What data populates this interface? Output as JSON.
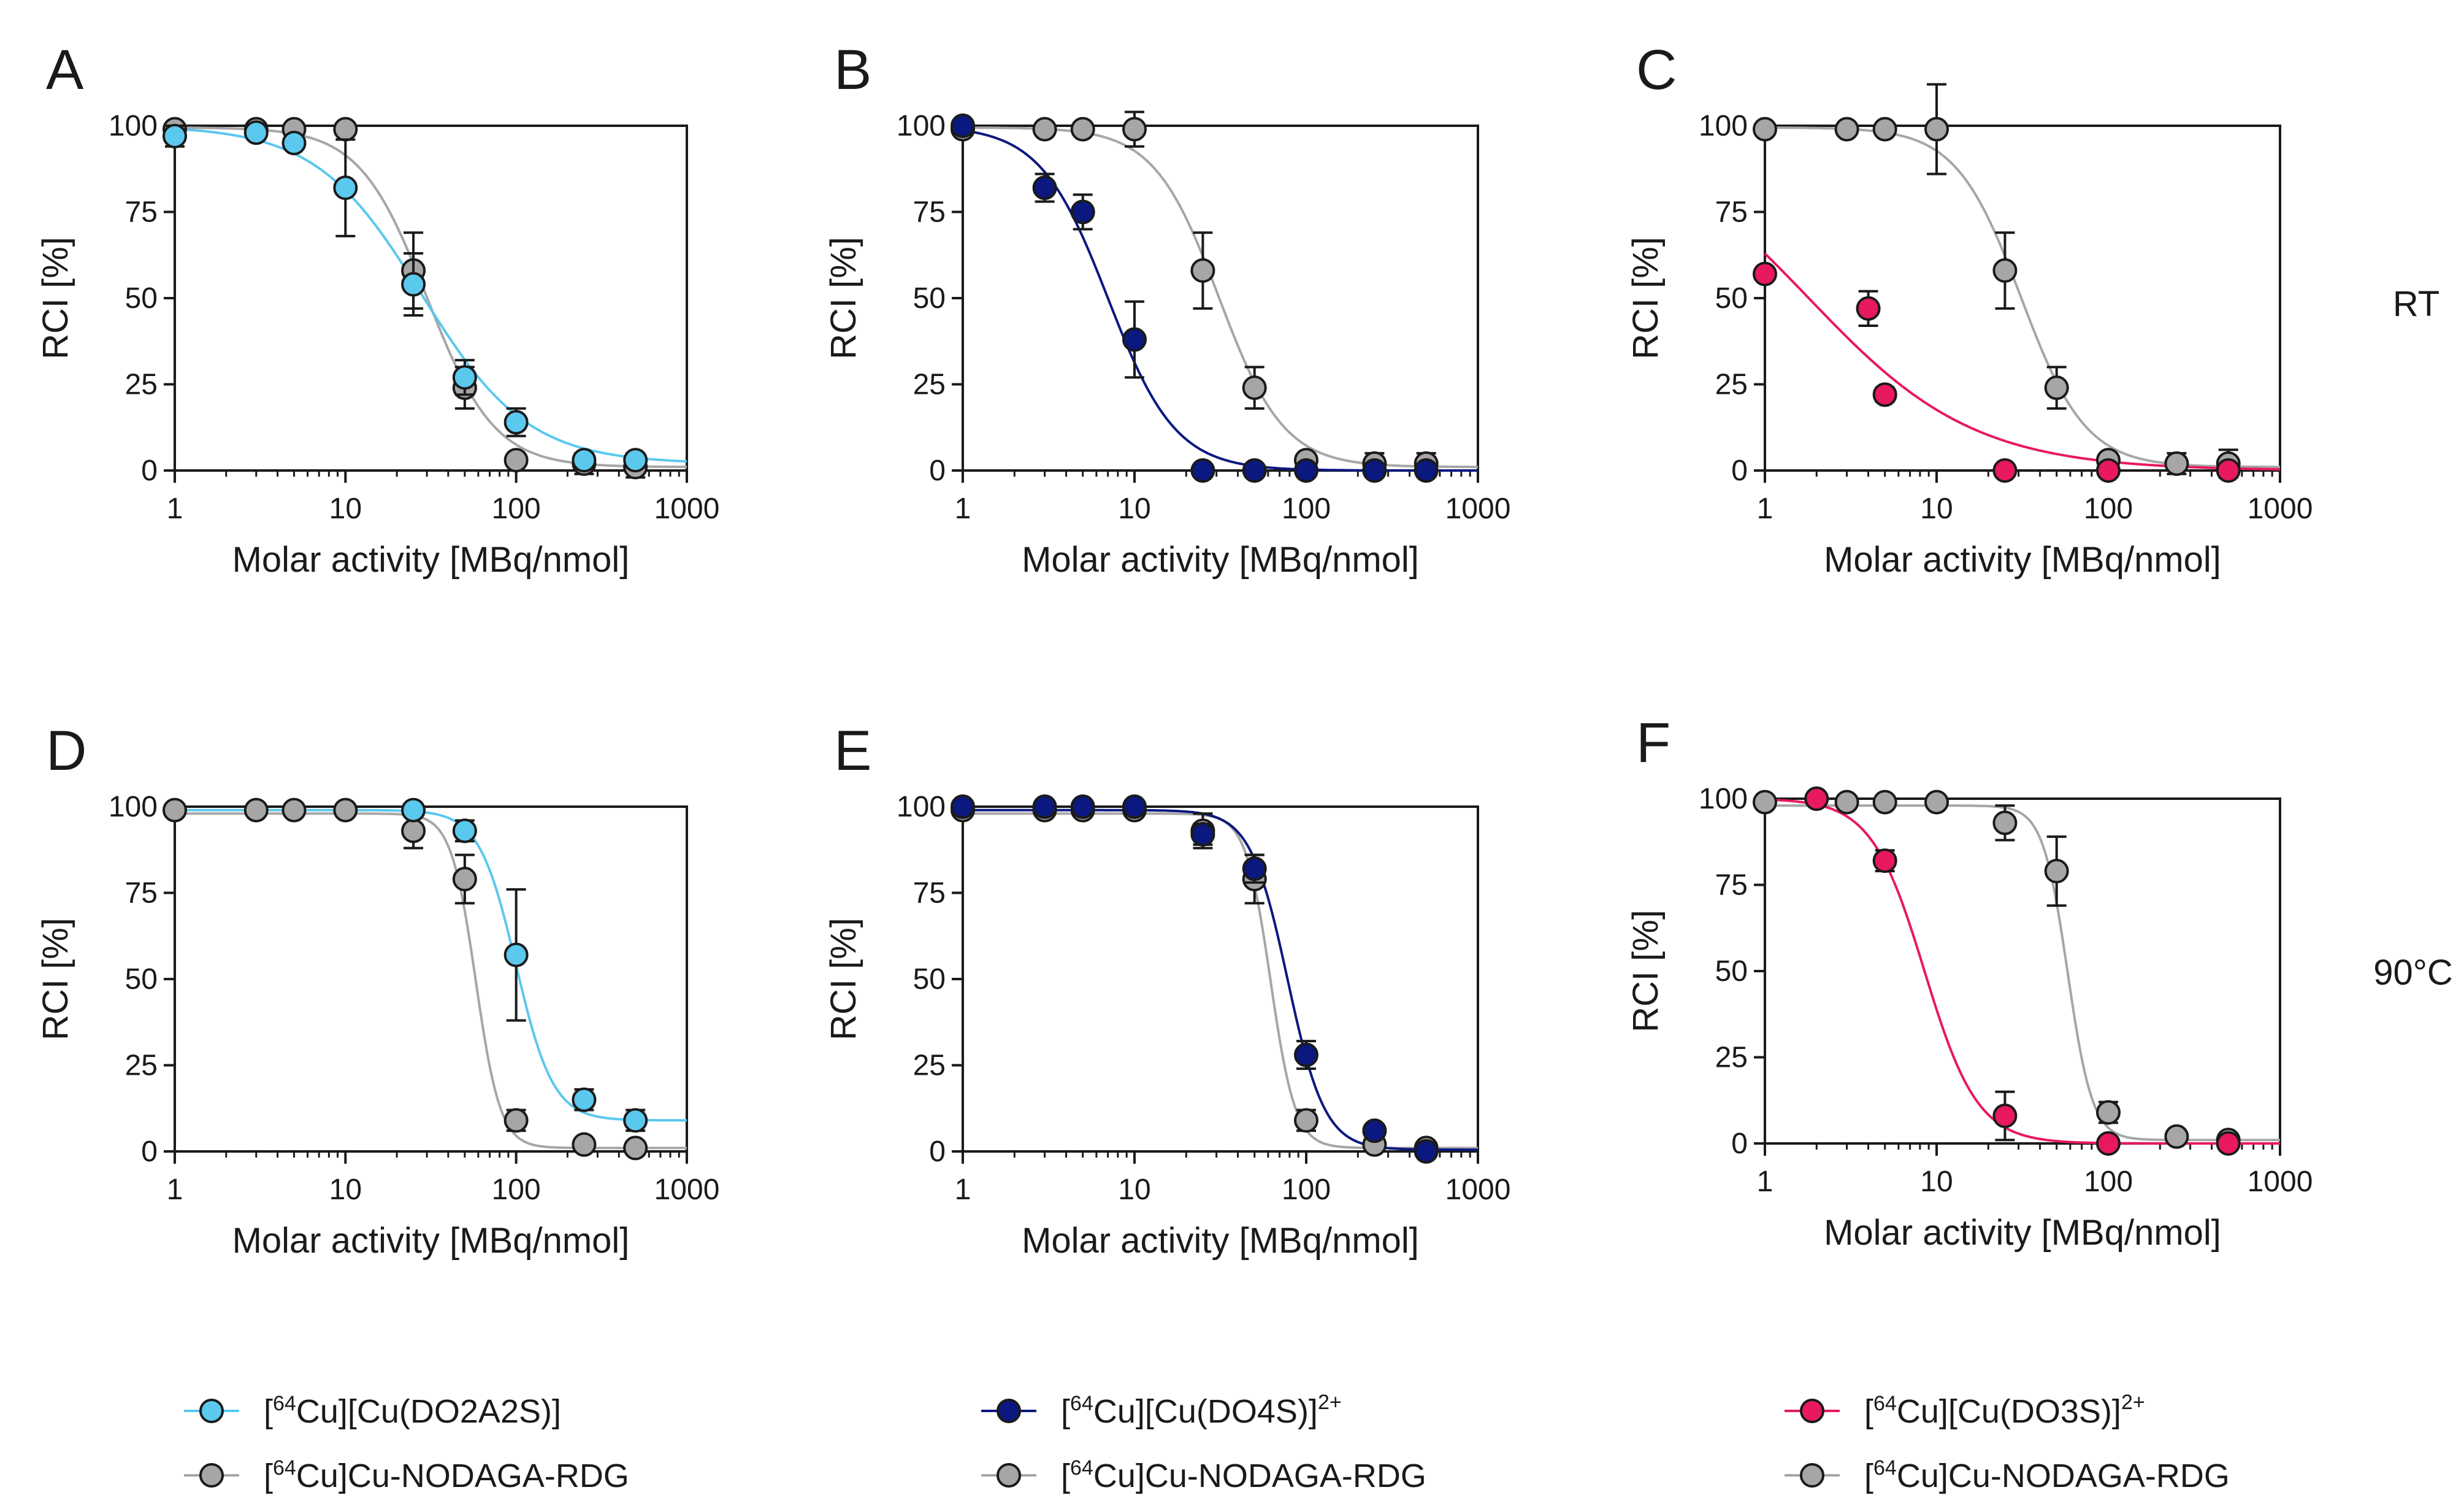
{
  "figure": {
    "row_labels": [
      "RT",
      "90°C"
    ],
    "colors": {
      "DO2A2S": "#5BC8EE",
      "DO4S": "#0A1880",
      "DO3S": "#E8195C",
      "NODAGA": "#A6A6A6",
      "axis": "#1a1a1a",
      "errorbar": "#1a1a1a"
    },
    "legend": [
      {
        "group": "DO2A2S",
        "entries": [
          {
            "prefix": "[",
            "sup": "64",
            "main": "Cu][Cu(DO2A2S)]",
            "sup2": "",
            "color_key": "DO2A2S"
          },
          {
            "prefix": "[",
            "sup": "64",
            "main": "Cu]Cu-NODAGA-RDG",
            "sup2": "",
            "color_key": "NODAGA"
          }
        ]
      },
      {
        "group": "DO4S",
        "entries": [
          {
            "prefix": "[",
            "sup": "64",
            "main": "Cu][Cu(DO4S)]",
            "sup2": "2+",
            "color_key": "DO4S"
          },
          {
            "prefix": "[",
            "sup": "64",
            "main": "Cu]Cu-NODAGA-RDG",
            "sup2": "",
            "color_key": "NODAGA"
          }
        ]
      },
      {
        "group": "DO3S",
        "entries": [
          {
            "prefix": "[",
            "sup": "64",
            "main": "Cu][Cu(DO3S)]",
            "sup2": "2+",
            "color_key": "DO3S"
          },
          {
            "prefix": "[",
            "sup": "64",
            "main": "Cu]Cu-NODAGA-RDG",
            "sup2": "",
            "color_key": "NODAGA"
          }
        ]
      }
    ]
  },
  "chart_data": [
    {
      "panel": "A",
      "condition": "RT",
      "type": "scatter",
      "xlabel": "Molar activity [MBq/nmol]",
      "ylabel": "RCI [%]",
      "xscale": "log",
      "xlim": [
        1,
        1000
      ],
      "ylim": [
        0,
        100
      ],
      "xticks": [
        1,
        10,
        100,
        1000
      ],
      "xtick_labels": [
        "1",
        "10",
        "100",
        "1000"
      ],
      "yticks": [
        0,
        25,
        50,
        75,
        100
      ],
      "ytick_labels": [
        "0",
        "25",
        "50",
        "75",
        "100"
      ],
      "series": [
        {
          "name": "[64Cu]Cu-NODAGA-RDG",
          "color_key": "NODAGA",
          "draw_order": 1,
          "fit": {
            "top": 99.5,
            "bottom": 1,
            "ic50": 30,
            "hill": 2.2
          },
          "points": [
            [
              1,
              99,
              1
            ],
            [
              3,
              99,
              1
            ],
            [
              5,
              99,
              1
            ],
            [
              10,
              99,
              1
            ],
            [
              25,
              58,
              11
            ],
            [
              50,
              24,
              6
            ],
            [
              100,
              3,
              0
            ],
            [
              250,
              2,
              3
            ],
            [
              500,
              1,
              3
            ]
          ]
        },
        {
          "name": "[64Cu][Cu(DO2A2S)]",
          "color_key": "DO2A2S",
          "draw_order": 2,
          "fit": {
            "top": 100,
            "bottom": 2,
            "ic50": 28,
            "hill": 1.4
          },
          "points": [
            [
              1,
              97,
              3
            ],
            [
              3,
              98,
              1
            ],
            [
              5,
              95,
              1
            ],
            [
              10,
              82,
              14
            ],
            [
              25,
              54,
              9
            ],
            [
              50,
              27,
              5
            ],
            [
              100,
              14,
              4
            ],
            [
              250,
              3,
              2
            ],
            [
              500,
              3,
              2
            ]
          ]
        }
      ]
    },
    {
      "panel": "B",
      "condition": "RT",
      "type": "scatter",
      "xlabel": "Molar activity [MBq/nmol]",
      "ylabel": "RCI [%]",
      "xscale": "log",
      "xlim": [
        1,
        1000
      ],
      "ylim": [
        0,
        100
      ],
      "xticks": [
        1,
        10,
        100,
        1000
      ],
      "xtick_labels": [
        "1",
        "10",
        "100",
        "1000"
      ],
      "yticks": [
        0,
        25,
        50,
        75,
        100
      ],
      "ytick_labels": [
        "0",
        "25",
        "50",
        "75",
        "100"
      ],
      "series": [
        {
          "name": "[64Cu]Cu-NODAGA-RDG",
          "color_key": "NODAGA",
          "draw_order": 1,
          "fit": {
            "top": 99.5,
            "bottom": 1,
            "ic50": 31,
            "hill": 2.3
          },
          "points": [
            [
              1,
              99,
              1
            ],
            [
              3,
              99,
              1
            ],
            [
              5,
              99,
              1
            ],
            [
              10,
              99,
              5
            ],
            [
              25,
              58,
              11
            ],
            [
              50,
              24,
              6
            ],
            [
              100,
              3,
              0
            ],
            [
              250,
              2,
              3
            ],
            [
              500,
              2,
              3
            ]
          ]
        },
        {
          "name": "[64Cu][Cu(DO4S)]2+",
          "color_key": "DO4S",
          "draw_order": 2,
          "fit": {
            "top": 100,
            "bottom": 0,
            "ic50": 7,
            "hill": 2.2
          },
          "points": [
            [
              1,
              100,
              1
            ],
            [
              3,
              82,
              4
            ],
            [
              5,
              75,
              5
            ],
            [
              10,
              38,
              11
            ],
            [
              25,
              0,
              0
            ],
            [
              50,
              0,
              0
            ],
            [
              100,
              0,
              0
            ],
            [
              250,
              0,
              0
            ],
            [
              500,
              0,
              0
            ]
          ]
        }
      ]
    },
    {
      "panel": "C",
      "condition": "RT",
      "type": "scatter",
      "xlabel": "Molar activity [MBq/nmol]",
      "ylabel": "RCI [%]",
      "xscale": "log",
      "xlim": [
        1,
        1000
      ],
      "ylim": [
        0,
        100
      ],
      "xticks": [
        1,
        10,
        100,
        1000
      ],
      "xtick_labels": [
        "1",
        "10",
        "100",
        "1000"
      ],
      "yticks": [
        0,
        25,
        50,
        75,
        100
      ],
      "ytick_labels": [
        "0",
        "25",
        "50",
        "75",
        "100"
      ],
      "series": [
        {
          "name": "[64Cu]Cu-NODAGA-RDG",
          "color_key": "NODAGA",
          "draw_order": 1,
          "fit": {
            "top": 99.5,
            "bottom": 1,
            "ic50": 31,
            "hill": 2.3
          },
          "points": [
            [
              1,
              99,
              0
            ],
            [
              3,
              99,
              0
            ],
            [
              5,
              99,
              0
            ],
            [
              10,
              99,
              13
            ],
            [
              25,
              58,
              11
            ],
            [
              50,
              24,
              6
            ],
            [
              100,
              3,
              0
            ],
            [
              250,
              2,
              3
            ],
            [
              500,
              2,
              4
            ]
          ]
        },
        {
          "name": "[64Cu][Cu(DO3S)]2+",
          "color_key": "DO3S",
          "draw_order": 2,
          "fit": {
            "top": 100,
            "bottom": 0,
            "ic50": 1.8,
            "hill": 0.9
          },
          "points": [
            [
              1,
              57,
              0
            ],
            [
              4,
              47,
              5
            ],
            [
              5,
              22,
              2
            ],
            [
              25,
              0,
              0
            ],
            [
              100,
              0,
              0
            ],
            [
              500,
              0,
              0
            ]
          ]
        }
      ]
    },
    {
      "panel": "D",
      "condition": "90°C",
      "type": "scatter",
      "xlabel": "Molar activity [MBq/nmol]",
      "ylabel": "RCI [%]",
      "xscale": "log",
      "xlim": [
        1,
        1000
      ],
      "ylim": [
        0,
        100
      ],
      "xticks": [
        1,
        10,
        100,
        1000
      ],
      "xtick_labels": [
        "1",
        "10",
        "100",
        "1000"
      ],
      "yticks": [
        0,
        25,
        50,
        75,
        100
      ],
      "ytick_labels": [
        "0",
        "25",
        "50",
        "75",
        "100"
      ],
      "series": [
        {
          "name": "[64Cu]Cu-NODAGA-RDG",
          "color_key": "NODAGA",
          "draw_order": 1,
          "fit": {
            "top": 98,
            "bottom": 1,
            "ic50": 58,
            "hill": 6
          },
          "points": [
            [
              1,
              99,
              0
            ],
            [
              3,
              99,
              0
            ],
            [
              5,
              99,
              0
            ],
            [
              10,
              99,
              0
            ],
            [
              25,
              93,
              5
            ],
            [
              50,
              79,
              7
            ],
            [
              100,
              9,
              3
            ],
            [
              250,
              2,
              0
            ],
            [
              500,
              1,
              0
            ]
          ]
        },
        {
          "name": "[64Cu][Cu(DO2A2S)]",
          "color_key": "DO2A2S",
          "draw_order": 2,
          "fit": {
            "top": 99,
            "bottom": 9,
            "ic50": 100,
            "hill": 4
          },
          "points": [
            [
              25,
              99,
              0
            ],
            [
              50,
              93,
              3
            ],
            [
              100,
              57,
              19
            ],
            [
              250,
              15,
              3
            ],
            [
              500,
              9,
              3
            ]
          ]
        }
      ]
    },
    {
      "panel": "E",
      "condition": "90°C",
      "type": "scatter",
      "xlabel": "Molar activity [MBq/nmol]",
      "ylabel": "RCI [%]",
      "xscale": "log",
      "xlim": [
        1,
        1000
      ],
      "ylim": [
        0,
        100
      ],
      "xticks": [
        1,
        10,
        100,
        1000
      ],
      "xtick_labels": [
        "1",
        "10",
        "100",
        "1000"
      ],
      "yticks": [
        0,
        25,
        50,
        75,
        100
      ],
      "ytick_labels": [
        "0",
        "25",
        "50",
        "75",
        "100"
      ],
      "series": [
        {
          "name": "[64Cu]Cu-NODAGA-RDG",
          "color_key": "NODAGA",
          "draw_order": 1,
          "fit": {
            "top": 98,
            "bottom": 1,
            "ic50": 62,
            "hill": 6
          },
          "points": [
            [
              1,
              99,
              0
            ],
            [
              3,
              99,
              0
            ],
            [
              5,
              99,
              0
            ],
            [
              10,
              99,
              0
            ],
            [
              25,
              93,
              5
            ],
            [
              50,
              79,
              7
            ],
            [
              100,
              9,
              3
            ],
            [
              250,
              2,
              0
            ],
            [
              500,
              1,
              0
            ]
          ]
        },
        {
          "name": "[64Cu][Cu(DO4S)]2+",
          "color_key": "DO4S",
          "draw_order": 2,
          "fit": {
            "top": 99,
            "bottom": 0.5,
            "ic50": 78,
            "hill": 4
          },
          "points": [
            [
              1,
              100,
              0
            ],
            [
              3,
              100,
              0
            ],
            [
              5,
              100,
              0
            ],
            [
              10,
              100,
              0
            ],
            [
              25,
              92,
              3
            ],
            [
              50,
              82,
              4
            ],
            [
              100,
              28,
              4
            ],
            [
              250,
              6,
              0
            ],
            [
              500,
              0,
              0
            ]
          ]
        }
      ]
    },
    {
      "panel": "F",
      "condition": "90°C",
      "type": "scatter",
      "xlabel": "Molar activity [MBq/nmol]",
      "ylabel": "RCI [%]",
      "xscale": "log",
      "xlim": [
        1,
        1000
      ],
      "ylim": [
        0,
        100
      ],
      "xticks": [
        1,
        10,
        100,
        1000
      ],
      "xtick_labels": [
        "1",
        "10",
        "100",
        "1000"
      ],
      "yticks": [
        0,
        25,
        50,
        75,
        100
      ],
      "ytick_labels": [
        "0",
        "25",
        "50",
        "75",
        "100"
      ],
      "series": [
        {
          "name": "[64Cu]Cu-NODAGA-RDG",
          "color_key": "NODAGA",
          "draw_order": 1,
          "fit": {
            "top": 98,
            "bottom": 1,
            "ic50": 58,
            "hill": 6
          },
          "points": [
            [
              1,
              99,
              0
            ],
            [
              3,
              99,
              0
            ],
            [
              5,
              99,
              0
            ],
            [
              10,
              99,
              0
            ],
            [
              25,
              93,
              5
            ],
            [
              50,
              79,
              10
            ],
            [
              100,
              9,
              3
            ],
            [
              250,
              2,
              0
            ],
            [
              500,
              1,
              0
            ]
          ]
        },
        {
          "name": "[64Cu][Cu(DO3S)]2+",
          "color_key": "DO3S",
          "draw_order": 2,
          "fit": {
            "top": 100,
            "bottom": 0,
            "ic50": 8.5,
            "hill": 2.8
          },
          "points": [
            [
              2,
              100,
              0
            ],
            [
              5,
              82,
              3
            ],
            [
              25,
              8,
              7
            ],
            [
              100,
              0,
              0
            ],
            [
              500,
              0,
              0
            ]
          ]
        }
      ]
    }
  ]
}
